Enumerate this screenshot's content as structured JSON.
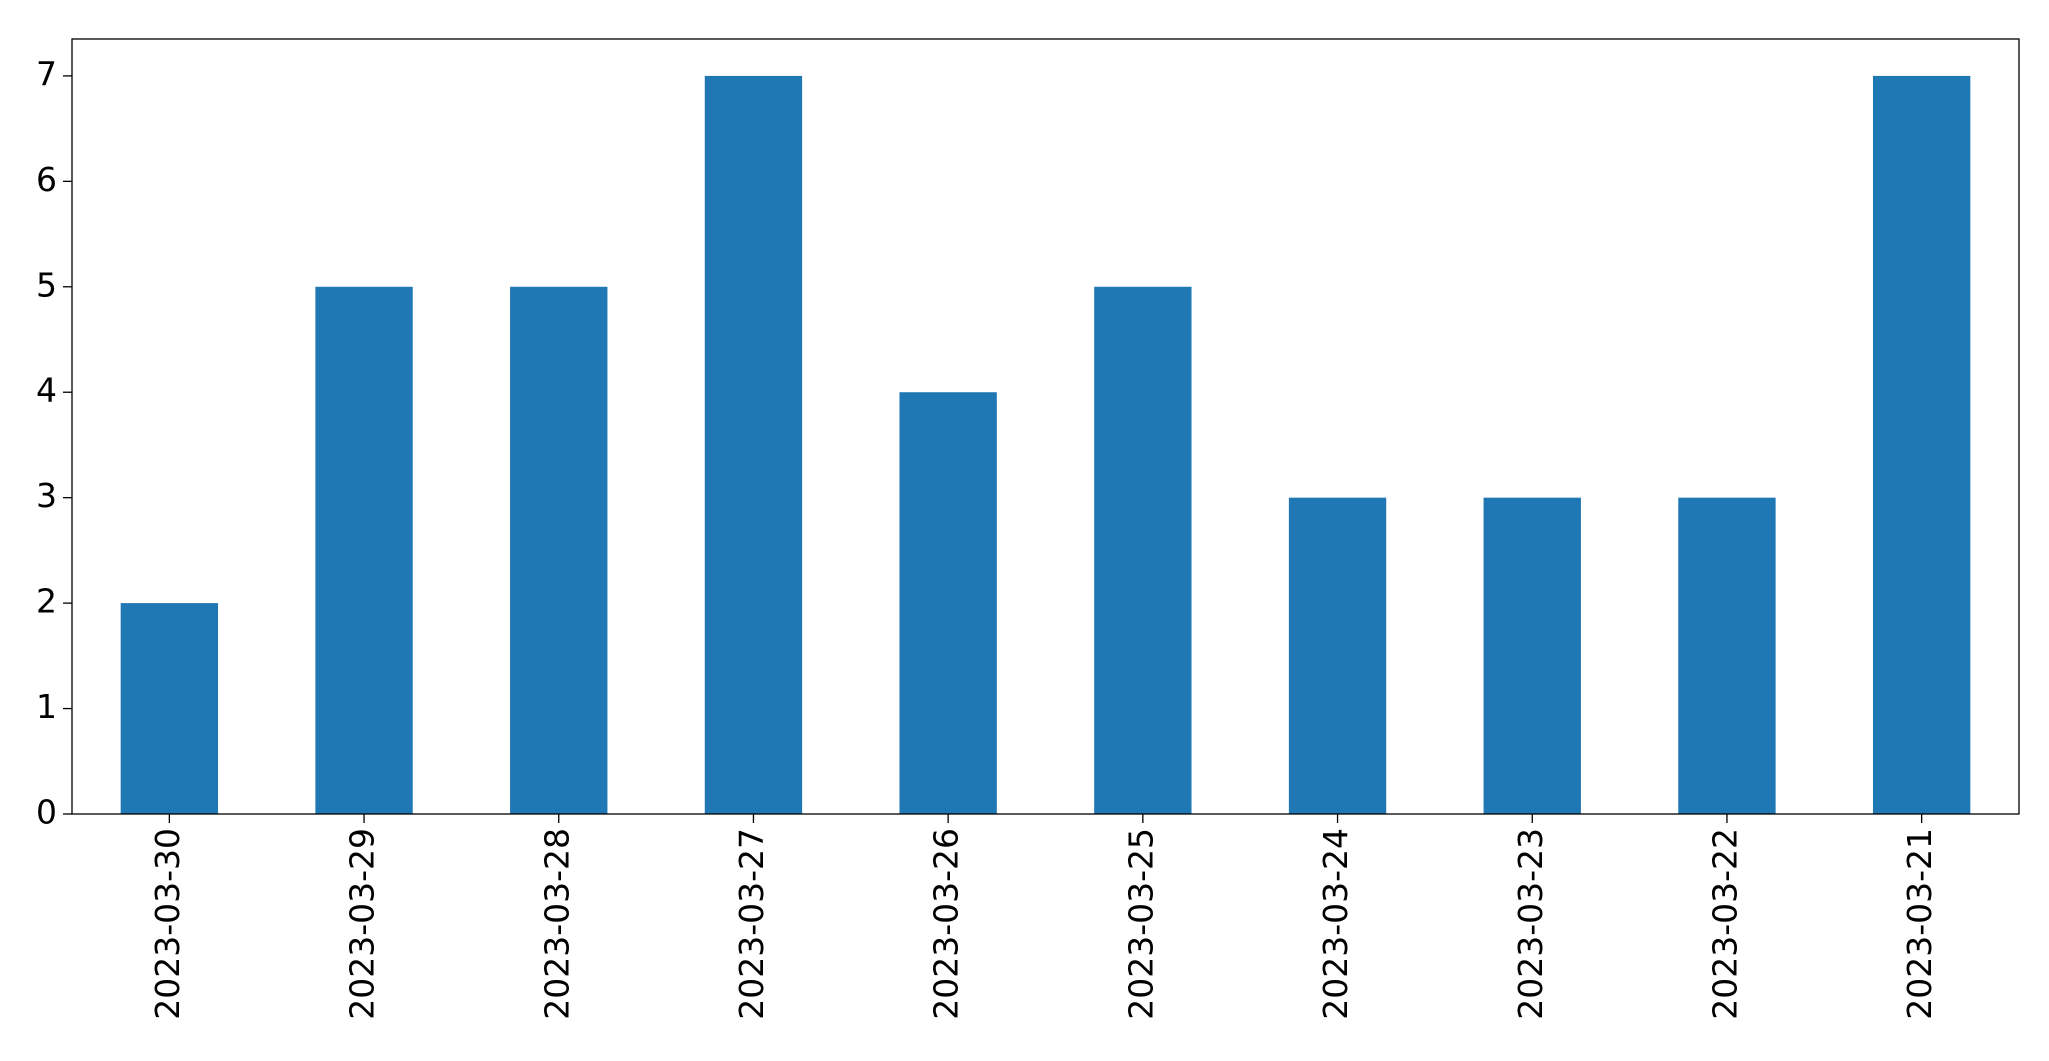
{
  "chart_data": {
    "type": "bar",
    "categories": [
      "2023-03-30",
      "2023-03-29",
      "2023-03-28",
      "2023-03-27",
      "2023-03-26",
      "2023-03-25",
      "2023-03-24",
      "2023-03-23",
      "2023-03-22",
      "2023-03-21"
    ],
    "values": [
      2,
      5,
      5,
      7,
      4,
      5,
      3,
      3,
      3,
      7
    ],
    "color": "#1f77b4",
    "ylim": [
      0,
      7.35
    ],
    "yticks": [
      0,
      1,
      2,
      3,
      4,
      5,
      6,
      7
    ],
    "grid": false
  }
}
